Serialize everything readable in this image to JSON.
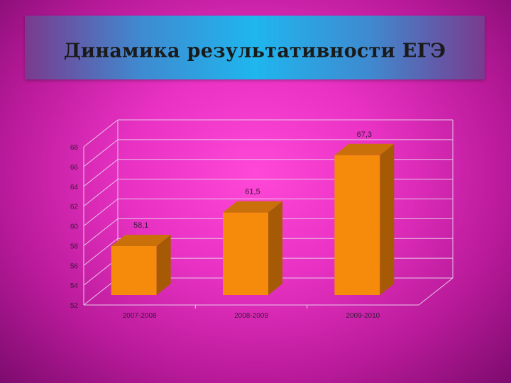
{
  "slide": {
    "title": "Динамика результативности ЕГЭ"
  },
  "chart_data": {
    "type": "bar",
    "categories": [
      "2007-2008",
      "2008-2009",
      "2009-2010"
    ],
    "values": [
      58.1,
      61.5,
      67.3
    ],
    "data_labels": [
      "58,1",
      "61,5",
      "67,3"
    ],
    "ylim": [
      52,
      68
    ],
    "yticks": [
      52,
      54,
      56,
      58,
      60,
      62,
      64,
      66,
      68
    ],
    "grid": true,
    "bar_style": "3d",
    "colors": {
      "bar_front": "#f58a0b",
      "bar_side": "#a65a06",
      "bar_top": "#c9700a",
      "grid": "#e8c8ea"
    }
  }
}
